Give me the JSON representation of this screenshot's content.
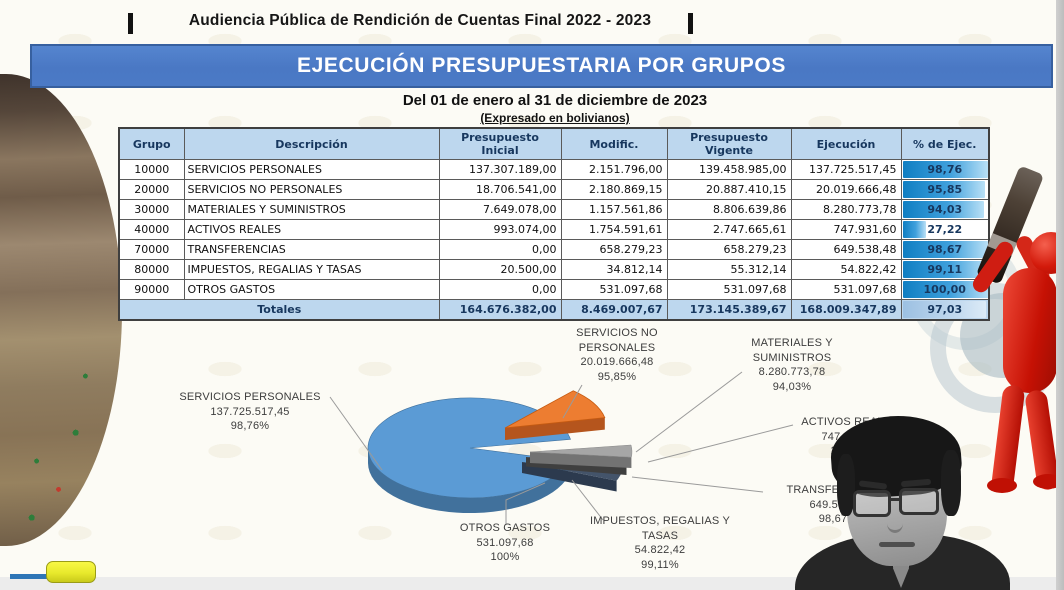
{
  "header": {
    "title": "Audiencia Pública de Rendición de Cuentas Final  2022 - 2023",
    "banner": "EJECUCIÓN PRESUPUESTARIA POR GRUPOS",
    "subtitle_date": "Del 01 de enero al 31 de diciembre de 2023",
    "subtitle_units": "(Expresado en bolivianos)"
  },
  "table": {
    "headers": [
      "Grupo",
      "Descripción",
      "Presupuesto Inicial",
      "Modific.",
      "Presupuesto Vigente",
      "Ejecución",
      "% de Ejec."
    ],
    "rows": [
      {
        "grupo": "10000",
        "descripcion": "SERVICIOS PERSONALES",
        "inicial": "137.307.189,00",
        "modific": "2.151.796,00",
        "vigente": "139.458.985,00",
        "ejecucion": "137.725.517,45",
        "pct": "98,76",
        "pct_num": 98.76
      },
      {
        "grupo": "20000",
        "descripcion": "SERVICIOS NO PERSONALES",
        "inicial": "18.706.541,00",
        "modific": "2.180.869,15",
        "vigente": "20.887.410,15",
        "ejecucion": "20.019.666,48",
        "pct": "95,85",
        "pct_num": 95.85
      },
      {
        "grupo": "30000",
        "descripcion": "MATERIALES Y SUMINISTROS",
        "inicial": "7.649.078,00",
        "modific": "1.157.561,86",
        "vigente": "8.806.639,86",
        "ejecucion": "8.280.773,78",
        "pct": "94,03",
        "pct_num": 94.03
      },
      {
        "grupo": "40000",
        "descripcion": "ACTIVOS REALES",
        "inicial": "993.074,00",
        "modific": "1.754.591,61",
        "vigente": "2.747.665,61",
        "ejecucion": "747.931,60",
        "pct": "27,22",
        "pct_num": 27.22
      },
      {
        "grupo": "70000",
        "descripcion": "TRANSFERENCIAS",
        "inicial": "0,00",
        "modific": "658.279,23",
        "vigente": "658.279,23",
        "ejecucion": "649.538,48",
        "pct": "98,67",
        "pct_num": 98.67
      },
      {
        "grupo": "80000",
        "descripcion": "IMPUESTOS, REGALIAS Y TASAS",
        "inicial": "20.500,00",
        "modific": "34.812,14",
        "vigente": "55.312,14",
        "ejecucion": "54.822,42",
        "pct": "99,11",
        "pct_num": 99.11
      },
      {
        "grupo": "90000",
        "descripcion": "OTROS GASTOS",
        "inicial": "0,00",
        "modific": "531.097,68",
        "vigente": "531.097,68",
        "ejecucion": "531.097,68",
        "pct": "100,00",
        "pct_num": 100
      }
    ],
    "totals": {
      "label": "Totales",
      "inicial": "164.676.382,00",
      "modific": "8.469.007,67",
      "vigente": "173.145.389,67",
      "ejecucion": "168.009.347,89",
      "pct": "97,03",
      "pct_num": 97.03
    }
  },
  "chart_data": {
    "type": "pie",
    "title": "",
    "style": "3d-exploded",
    "legend": "none (callout labels)",
    "categories": [
      "SERVICIOS PERSONALES",
      "SERVICIOS NO PERSONALES",
      "MATERIALES Y SUMINISTROS",
      "ACTIVOS REALES",
      "TRANSFERENCIAS",
      "IMPUESTOS, REGALIAS Y TASAS",
      "OTROS GASTOS"
    ],
    "values": [
      137725517.45,
      20019666.48,
      8280773.78,
      747931.6,
      649538.48,
      54822.42,
      531097.68
    ],
    "colors": [
      "#5b9bd5",
      "#ed7d31",
      "#a6a6a6",
      "#595959",
      "#44546a",
      "#2d3a4d",
      "#7f7f7f"
    ],
    "slices": [
      {
        "name": "SERVICIOS PERSONALES",
        "value_label": "137.725.517,45",
        "pct": "98,76%"
      },
      {
        "name": "SERVICIOS NO PERSONALES",
        "value_label": "20.019.666,48",
        "pct": "95,85%"
      },
      {
        "name": "MATERIALES Y SUMINISTROS",
        "value_label": "8.280.773,78",
        "pct": "94,03%"
      },
      {
        "name": "ACTIVOS REALES",
        "value_label": "747.931,60",
        "pct": "27,22%"
      },
      {
        "name": "TRANSFERENCIAS",
        "value_label": "649.538,48",
        "pct": "98,67%"
      },
      {
        "name": "IMPUESTOS, REGALIAS Y TASAS",
        "value_label": "54.822,42",
        "pct": "99,11%"
      },
      {
        "name": "OTROS GASTOS",
        "value_label": "531.097,68",
        "pct": "100%"
      }
    ]
  },
  "colors": {
    "banner_blue": "#4b7ac6",
    "table_header_blue": "#bdd7ee",
    "pct_bar_blue": "#1f86c9",
    "pie_blue": "#5b9bd5",
    "pie_orange": "#ed7d31",
    "pie_gray": "#a6a6a6",
    "pie_navy": "#44546a",
    "red_figure": "#c61104"
  }
}
